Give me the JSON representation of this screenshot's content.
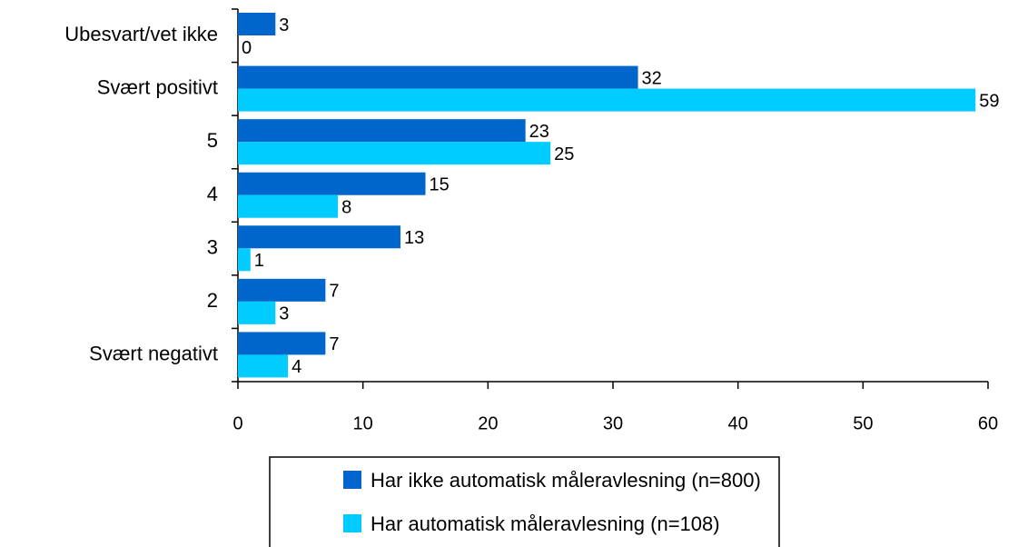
{
  "chart_data": {
    "type": "bar",
    "orientation": "horizontal",
    "categories": [
      "Ubesvart/vet ikke",
      "Svært positivt",
      "5",
      "4",
      "3",
      "2",
      "Svært negativt"
    ],
    "series": [
      {
        "name": "Har ikke automatisk måleravlesning (n=800)",
        "color": "#0066cc",
        "values": [
          3,
          32,
          23,
          15,
          13,
          7,
          7
        ]
      },
      {
        "name": "Har automatisk måleravlesning (n=108)",
        "color": "#00ccff",
        "values": [
          0,
          59,
          25,
          8,
          1,
          3,
          4
        ]
      }
    ],
    "xlim": [
      0,
      60
    ],
    "xticks": [
      0,
      10,
      20,
      30,
      40,
      50,
      60
    ],
    "grid": false,
    "legend": "bottom"
  }
}
